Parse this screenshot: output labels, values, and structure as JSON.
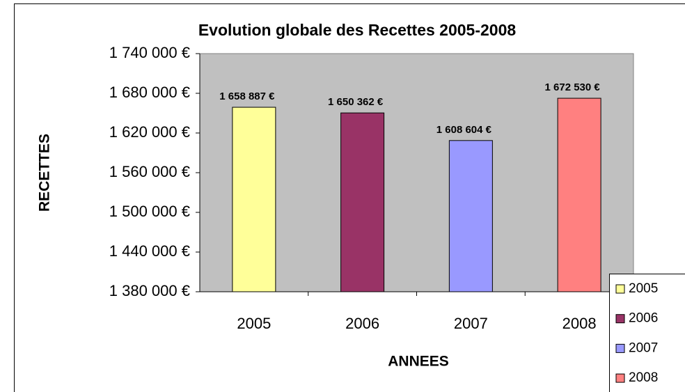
{
  "chart_data": {
    "type": "bar",
    "title": "Evolution globale des Recettes 2005-2008",
    "x_label": "ANNEES",
    "y_label": "RECETTES",
    "categories": [
      "2005",
      "2006",
      "2007",
      "2008"
    ],
    "values": [
      1658887,
      1650362,
      1608604,
      1672530
    ],
    "value_labels": [
      "1 658 887 €",
      "1 650 362 €",
      "1 608 604 €",
      "1 672 530 €"
    ],
    "colors": [
      "#ffff99",
      "#993366",
      "#9999ff",
      "#ff8080"
    ],
    "ylim": [
      1380000,
      1740000
    ],
    "yticks": [
      {
        "value": 1380000,
        "label": "1 380 000 €"
      },
      {
        "value": 1440000,
        "label": "1 440 000 €"
      },
      {
        "value": 1500000,
        "label": "1 500 000 €"
      },
      {
        "value": 1560000,
        "label": "1 560 000 €"
      },
      {
        "value": 1620000,
        "label": "1 620 000 €"
      },
      {
        "value": 1680000,
        "label": "1 680 000 €"
      },
      {
        "value": 1740000,
        "label": "1 740 000 €"
      }
    ],
    "plot_background": "#c0c0c0",
    "grid": false,
    "legend": "bottom-right"
  }
}
